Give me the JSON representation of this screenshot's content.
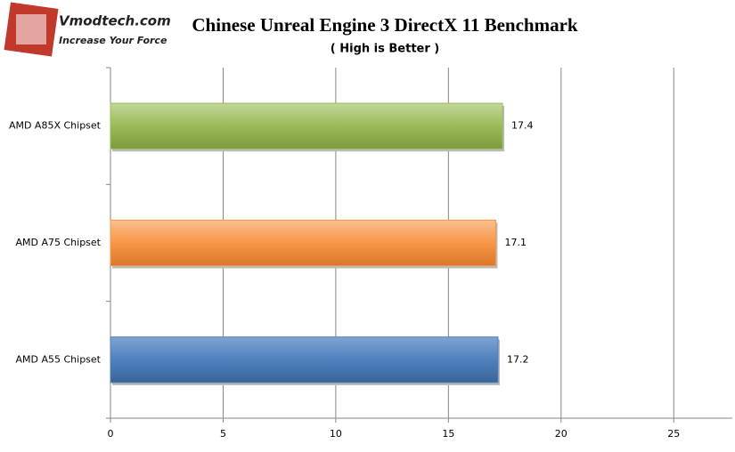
{
  "logo": {
    "name": "Vmodtech.com",
    "tagline": "Increase Your Force"
  },
  "chart_data": {
    "type": "hbar",
    "title": "Chinese Unreal Engine 3 DirectX 11 Benchmark",
    "subtitle": "( High is Better )",
    "categories": [
      "AMD A85X Chipset",
      "AMD A75 Chipset",
      "AMD A55 Chipset"
    ],
    "values": [
      17.4,
      17.1,
      17.2
    ],
    "colors": [
      "#9bbb59",
      "#f79646",
      "#4f81bd"
    ],
    "xlim": [
      0,
      27.6
    ],
    "xticks": [
      0,
      5,
      10,
      15,
      20,
      25
    ],
    "grid": true
  }
}
